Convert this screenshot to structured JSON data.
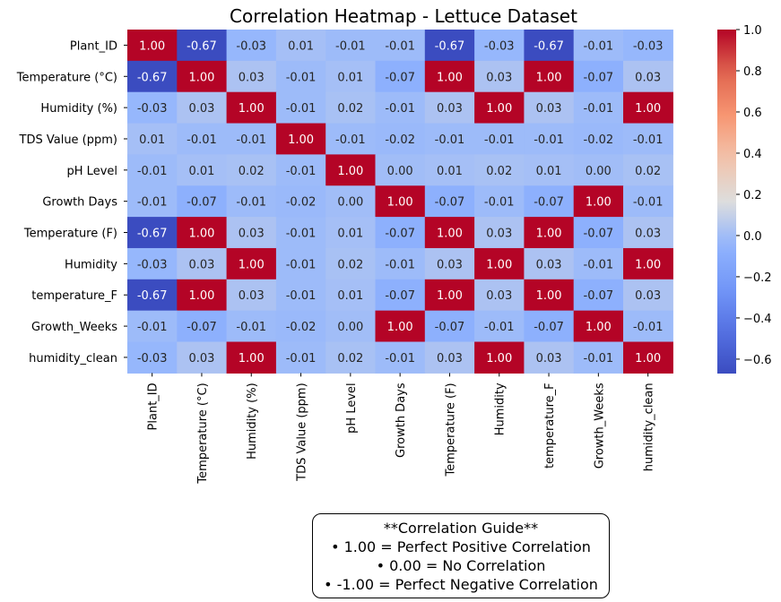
{
  "chart_data": {
    "type": "heatmap",
    "title": "Correlation Heatmap - Lettuce Dataset",
    "row_labels": [
      "Plant_ID",
      "Temperature (°C)",
      "Humidity (%)",
      "TDS Value (ppm)",
      "pH Level",
      "Growth Days",
      "Temperature (F)",
      "Humidity",
      "temperature_F",
      "Growth_Weeks",
      "humidity_clean"
    ],
    "col_labels": [
      "Plant_ID",
      "Temperature (°C)",
      "Humidity (%)",
      "TDS Value (ppm)",
      "pH Level",
      "Growth Days",
      "Temperature (F)",
      "Humidity",
      "temperature_F",
      "Growth_Weeks",
      "humidity_clean"
    ],
    "values": [
      [
        1.0,
        -0.67,
        -0.03,
        0.01,
        -0.01,
        -0.01,
        -0.67,
        -0.03,
        -0.67,
        -0.01,
        -0.03
      ],
      [
        -0.67,
        1.0,
        0.03,
        -0.01,
        0.01,
        -0.07,
        1.0,
        0.03,
        1.0,
        -0.07,
        0.03
      ],
      [
        -0.03,
        0.03,
        1.0,
        -0.01,
        0.02,
        -0.01,
        0.03,
        1.0,
        0.03,
        -0.01,
        1.0
      ],
      [
        0.01,
        -0.01,
        -0.01,
        1.0,
        -0.01,
        -0.02,
        -0.01,
        -0.01,
        -0.01,
        -0.02,
        -0.01
      ],
      [
        -0.01,
        0.01,
        0.02,
        -0.01,
        1.0,
        0.0,
        0.01,
        0.02,
        0.01,
        0.0,
        0.02
      ],
      [
        -0.01,
        -0.07,
        -0.01,
        -0.02,
        0.0,
        1.0,
        -0.07,
        -0.01,
        -0.07,
        1.0,
        -0.01
      ],
      [
        -0.67,
        1.0,
        0.03,
        -0.01,
        0.01,
        -0.07,
        1.0,
        0.03,
        1.0,
        -0.07,
        0.03
      ],
      [
        -0.03,
        0.03,
        1.0,
        -0.01,
        0.02,
        -0.01,
        0.03,
        1.0,
        0.03,
        -0.01,
        1.0
      ],
      [
        -0.67,
        1.0,
        0.03,
        -0.01,
        0.01,
        -0.07,
        1.0,
        0.03,
        1.0,
        -0.07,
        0.03
      ],
      [
        -0.01,
        -0.07,
        -0.01,
        -0.02,
        0.0,
        1.0,
        -0.07,
        -0.01,
        -0.07,
        1.0,
        -0.01
      ],
      [
        -0.03,
        0.03,
        1.0,
        -0.01,
        0.02,
        -0.01,
        0.03,
        1.0,
        0.03,
        -0.01,
        1.0
      ]
    ],
    "colormap": "coolwarm",
    "vmin": -0.67,
    "vmax": 1.0,
    "colorbar_ticks": [
      "1.0",
      "0.8",
      "0.6",
      "0.4",
      "0.2",
      "0.0",
      "−0.2",
      "−0.4",
      "−0.6"
    ],
    "colorbar_tick_values": [
      1.0,
      0.8,
      0.6,
      0.4,
      0.2,
      0.0,
      -0.2,
      -0.4,
      -0.6
    ]
  },
  "guide": {
    "line1": "**Correlation Guide**",
    "line2": "• 1.00 = Perfect Positive Correlation",
    "line3": "• 0.00 = No Correlation",
    "line4": "• -1.00 = Perfect Negative Correlation"
  }
}
